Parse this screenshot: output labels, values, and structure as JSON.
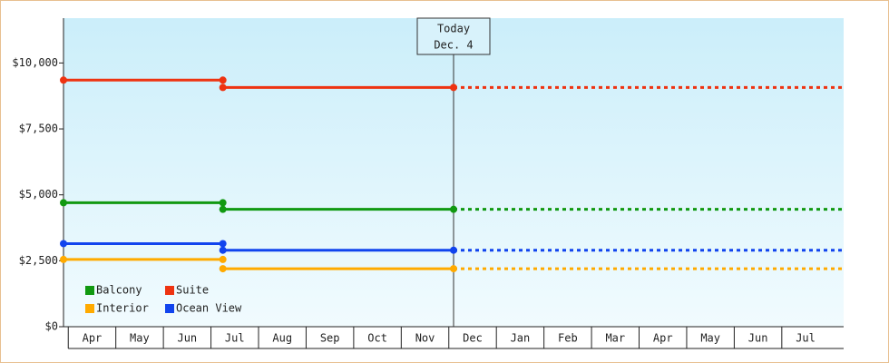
{
  "chart_data": {
    "type": "step-line",
    "categories": [
      "Apr",
      "May",
      "Jun",
      "Jul",
      "Aug",
      "Sep",
      "Oct",
      "Nov",
      "Dec",
      "Jan",
      "Feb",
      "Mar",
      "Apr",
      "May",
      "Jun",
      "Jul"
    ],
    "x": [
      -0.1,
      3.25,
      3.25,
      3.25,
      8.1
    ],
    "xlim": [
      -0.1,
      16.3
    ],
    "ylim": [
      0,
      11700
    ],
    "yticks": [
      {
        "value": 0,
        "label": "$0"
      },
      {
        "value": 2500,
        "label": "$2,500"
      },
      {
        "value": 5000,
        "label": "$5,000"
      },
      {
        "value": 7500,
        "label": "$7,500"
      },
      {
        "value": 10000,
        "label": "$10,000"
      }
    ],
    "series": [
      {
        "name": "Balcony",
        "color": "#119911",
        "values": [
          4700,
          4700,
          null,
          4450,
          4450
        ]
      },
      {
        "name": "Suite",
        "color": "#ee3311",
        "values": [
          9350,
          9350,
          null,
          9070,
          9070
        ]
      },
      {
        "name": "Interior",
        "color": "#ffaa00",
        "values": [
          2550,
          2550,
          null,
          2200,
          2200
        ]
      },
      {
        "name": "Ocean View",
        "color": "#1144ee",
        "values": [
          3150,
          3150,
          null,
          2900,
          2900
        ]
      }
    ],
    "today": {
      "x": 8.1,
      "label": [
        "Today",
        "Dec. 4"
      ]
    },
    "legend": "bottom-left"
  }
}
